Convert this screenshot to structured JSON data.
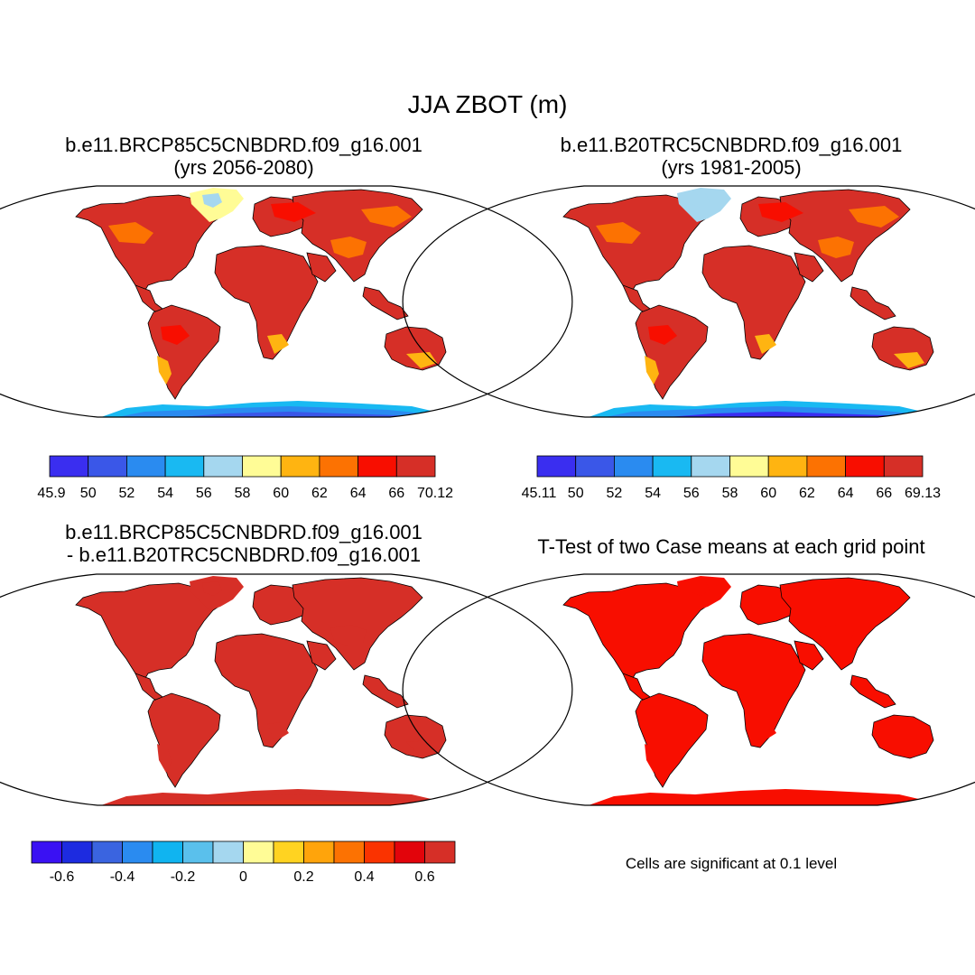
{
  "title": "JJA ZBOT (m)",
  "panels": [
    {
      "id": "p1",
      "title_line1": "b.e11.BRCP85C5CNBDRD.f09_g16.001",
      "title_line2": "(yrs 2056-2080)",
      "land_colors": {
        "high": "#d62f27",
        "mid": "#f80e00",
        "low": "#fc7202",
        "lower": "#ffb411",
        "plateau": "#fc7202",
        "greenland": "#fffc96",
        "greenland_core": "#a5d7ef"
      },
      "antarctica_colors": {
        "edge": "#19b9f2",
        "body": "#2a8bf0",
        "core": "#3a57e8"
      }
    },
    {
      "id": "p2",
      "title_line1": "b.e11.B20TRC5CNBDRD.f09_g16.001",
      "title_line2": "(yrs 1981-2005)",
      "land_colors": {
        "high": "#d62f27",
        "mid": "#f80e00",
        "low": "#fc7202",
        "lower": "#ffb411",
        "plateau": "#fc7202",
        "greenland": "#a5d7ef",
        "greenland_core": "#a5d7ef"
      },
      "antarctica_colors": {
        "edge": "#19b9f2",
        "body": "#2a8bf0",
        "core": "#3a2ef0"
      }
    },
    {
      "id": "p3",
      "title_line1": "b.e11.BRCP85C5CNBDRD.f09_g16.001",
      "title_line2": "- b.e11.B20TRC5CNBDRD.f09_g16.001",
      "land_colors": {
        "high": "#d62f27",
        "mid": "#d62f27",
        "low": "#d62f27",
        "lower": "#d62f27",
        "plateau": "#d62f27",
        "greenland": "#d62f27",
        "greenland_core": "#d62f27"
      },
      "antarctica_colors": {
        "edge": "#d62f27",
        "body": "#d62f27",
        "core": "#e0301e"
      }
    },
    {
      "id": "p4",
      "title_line1": "T-Test of two Case means at each grid point",
      "title_line2": "",
      "land_colors": {
        "high": "#f80e00",
        "mid": "#f80e00",
        "low": "#f80e00",
        "lower": "#f80e00",
        "plateau": "#f80e00",
        "greenland": "#f80e00",
        "greenland_core": "#f80e00"
      },
      "antarctica_colors": {
        "edge": "#f80e00",
        "body": "#f80e00",
        "core": "#f80e00"
      }
    }
  ],
  "colorbars": [
    {
      "id": "cb1",
      "colors": [
        "#3a2ef0",
        "#3a57e8",
        "#2a8bf0",
        "#19b9f2",
        "#a5d7ef",
        "#fffc96",
        "#ffb411",
        "#fc7202",
        "#f80e00",
        "#d62f27"
      ],
      "labels": [
        "45.9",
        "50",
        "52",
        "54",
        "56",
        "58",
        "60",
        "62",
        "64",
        "66",
        "70.12"
      ]
    },
    {
      "id": "cb2",
      "colors": [
        "#3a2ef0",
        "#3a57e8",
        "#2a8bf0",
        "#19b9f2",
        "#a5d7ef",
        "#fffc96",
        "#ffb411",
        "#fc7202",
        "#f80e00",
        "#d62f27"
      ],
      "labels": [
        "45.11",
        "50",
        "52",
        "54",
        "56",
        "58",
        "60",
        "62",
        "64",
        "66",
        "69.13"
      ]
    },
    {
      "id": "cb3",
      "colors": [
        "#3a11f3",
        "#1d2be0",
        "#3a64e0",
        "#2a8bf0",
        "#10b4f0",
        "#5ac0ec",
        "#a5d7ef",
        "#fffc96",
        "#ffd321",
        "#ffa40b",
        "#fc7202",
        "#fa3300",
        "#e2040b",
        "#d62f27"
      ],
      "labels": [
        "-0.6",
        "-0.4",
        "-0.2",
        "0",
        "0.2",
        "0.4",
        "0.6"
      ]
    }
  ],
  "significance_note": "Cells are significant at 0.1 level"
}
